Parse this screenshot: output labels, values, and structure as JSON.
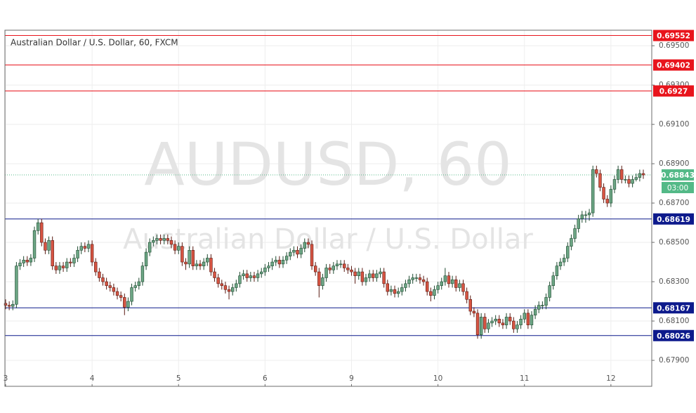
{
  "chart_data": {
    "type": "candlestick",
    "title": "Australian Dollar / U.S. Dollar, 60, FXCM",
    "watermark": "AUDUSD, 60",
    "watermark_subtitle": "Australian Dollar / U.S. Dollar",
    "up_color": "#6ca584",
    "down_color": "#d75442",
    "up_border": "#1e4a30",
    "down_border": "#5a1a12",
    "grid": true,
    "ylim": [
      0.67768,
      0.69579
    ],
    "yticks": [
      {
        "value": 0.679,
        "label": "0.67900"
      },
      {
        "value": 0.681,
        "label": "0.68100"
      },
      {
        "value": 0.683,
        "label": "0.68300"
      },
      {
        "value": 0.685,
        "label": "0.68500"
      },
      {
        "value": 0.687,
        "label": "0.68700"
      },
      {
        "value": 0.689,
        "label": "0.68900"
      },
      {
        "value": 0.691,
        "label": "0.69100"
      },
      {
        "value": 0.693,
        "label": "0.69300"
      },
      {
        "value": 0.695,
        "label": "0.69500"
      }
    ],
    "levels": [
      {
        "value": 0.69552,
        "color": "#e8141c"
      },
      {
        "value": 0.69402,
        "color": "#e8141c"
      },
      {
        "value": 0.6927,
        "color": "#e8141c"
      },
      {
        "value": 0.68619,
        "color": "#0d1a8c"
      },
      {
        "value": 0.68167,
        "color": "#0d1a8c"
      },
      {
        "value": 0.68026,
        "color": "#0d1a8c"
      }
    ],
    "last_price": {
      "value": 0.68843,
      "countdown": "03:00",
      "color": "#53b987"
    },
    "categories": [
      "3",
      null,
      null,
      null,
      null,
      null,
      null,
      null,
      null,
      null,
      null,
      null,
      null,
      null,
      null,
      null,
      null,
      null,
      null,
      null,
      null,
      null,
      null,
      null,
      "4",
      null,
      null,
      null,
      null,
      null,
      null,
      null,
      null,
      null,
      null,
      null,
      null,
      null,
      null,
      null,
      null,
      null,
      null,
      null,
      null,
      null,
      null,
      null,
      "5",
      null,
      null,
      null,
      null,
      null,
      null,
      null,
      null,
      null,
      null,
      null,
      null,
      null,
      null,
      null,
      null,
      null,
      null,
      null,
      null,
      null,
      null,
      null,
      "6",
      null,
      null,
      null,
      null,
      null,
      null,
      null,
      null,
      null,
      null,
      null,
      null,
      null,
      null,
      null,
      null,
      null,
      null,
      null,
      null,
      null,
      null,
      null,
      "9",
      null,
      null,
      null,
      null,
      null,
      null,
      null,
      null,
      null,
      null,
      null,
      null,
      null,
      null,
      null,
      null,
      null,
      null,
      null,
      null,
      null,
      null,
      null,
      "10",
      null,
      null,
      null,
      null,
      null,
      null,
      null,
      null,
      null,
      null,
      null,
      null,
      null,
      null,
      null,
      null,
      null,
      null,
      null,
      null,
      null,
      null,
      null,
      "11",
      null,
      null,
      null,
      null,
      null,
      null,
      null,
      null,
      null,
      null,
      null,
      null,
      null,
      null,
      null,
      null,
      null,
      null,
      null,
      null,
      null,
      null,
      null,
      "12",
      null,
      null,
      null,
      null,
      null,
      null,
      null,
      null,
      null
    ],
    "ohlc": [
      [
        0.6819,
        0.6821,
        0.6816,
        0.6818
      ],
      [
        0.6818,
        0.682,
        0.68155,
        0.68175
      ],
      [
        0.68175,
        0.68205,
        0.68155,
        0.68185
      ],
      [
        0.68185,
        0.684,
        0.68165,
        0.6838
      ],
      [
        0.6838,
        0.68415,
        0.6836,
        0.68395
      ],
      [
        0.68395,
        0.6843,
        0.68375,
        0.6841
      ],
      [
        0.6841,
        0.6843,
        0.6838,
        0.684
      ],
      [
        0.684,
        0.6844,
        0.6838,
        0.6842
      ],
      [
        0.6842,
        0.6858,
        0.684,
        0.6856
      ],
      [
        0.6856,
        0.6862,
        0.6854,
        0.686
      ],
      [
        0.686,
        0.6862,
        0.6848,
        0.685
      ],
      [
        0.685,
        0.6852,
        0.6844,
        0.6846
      ],
      [
        0.6846,
        0.6853,
        0.6844,
        0.6851
      ],
      [
        0.6851,
        0.6853,
        0.6836,
        0.6838
      ],
      [
        0.6838,
        0.684,
        0.6834,
        0.6836
      ],
      [
        0.6836,
        0.684,
        0.6834,
        0.6838
      ],
      [
        0.6838,
        0.684,
        0.6835,
        0.6837
      ],
      [
        0.6837,
        0.6842,
        0.6835,
        0.684
      ],
      [
        0.684,
        0.6842,
        0.68375,
        0.68395
      ],
      [
        0.68395,
        0.6844,
        0.68375,
        0.6842
      ],
      [
        0.6842,
        0.6848,
        0.684,
        0.6846
      ],
      [
        0.6846,
        0.685,
        0.6844,
        0.6848
      ],
      [
        0.6848,
        0.685,
        0.6845,
        0.6847
      ],
      [
        0.6847,
        0.6851,
        0.6845,
        0.6849
      ],
      [
        0.6849,
        0.6851,
        0.6838,
        0.684
      ],
      [
        0.684,
        0.6842,
        0.6833,
        0.6835
      ],
      [
        0.6835,
        0.6837,
        0.683,
        0.6832
      ],
      [
        0.6832,
        0.6834,
        0.6828,
        0.683
      ],
      [
        0.683,
        0.6832,
        0.6826,
        0.6828
      ],
      [
        0.6828,
        0.683,
        0.6825,
        0.6827
      ],
      [
        0.6827,
        0.6829,
        0.6823,
        0.6825
      ],
      [
        0.6825,
        0.6827,
        0.6821,
        0.6823
      ],
      [
        0.6823,
        0.6825,
        0.682,
        0.6822
      ],
      [
        0.6822,
        0.6824,
        0.6813,
        0.6817
      ],
      [
        0.6817,
        0.6822,
        0.6815,
        0.682
      ],
      [
        0.682,
        0.6829,
        0.6818,
        0.6827
      ],
      [
        0.6827,
        0.683,
        0.6825,
        0.6828
      ],
      [
        0.6828,
        0.6832,
        0.6826,
        0.683
      ],
      [
        0.683,
        0.684,
        0.6828,
        0.6838
      ],
      [
        0.6838,
        0.6847,
        0.6836,
        0.6845
      ],
      [
        0.6845,
        0.6852,
        0.6843,
        0.685
      ],
      [
        0.685,
        0.6853,
        0.6848,
        0.6851
      ],
      [
        0.6851,
        0.6854,
        0.6849,
        0.6852
      ],
      [
        0.6852,
        0.6854,
        0.6849,
        0.6851
      ],
      [
        0.6851,
        0.6854,
        0.6849,
        0.6852
      ],
      [
        0.6852,
        0.6854,
        0.6849,
        0.6851
      ],
      [
        0.6851,
        0.6853,
        0.6847,
        0.6849
      ],
      [
        0.6849,
        0.6851,
        0.6844,
        0.6846
      ],
      [
        0.6846,
        0.685,
        0.6844,
        0.6848
      ],
      [
        0.6848,
        0.685,
        0.6838,
        0.684
      ],
      [
        0.684,
        0.6842,
        0.6836,
        0.6839
      ],
      [
        0.6839,
        0.6848,
        0.6837,
        0.6846
      ],
      [
        0.6846,
        0.6848,
        0.6836,
        0.6838
      ],
      [
        0.6838,
        0.6841,
        0.6836,
        0.6839
      ],
      [
        0.6839,
        0.6841,
        0.6836,
        0.6838
      ],
      [
        0.6838,
        0.6842,
        0.6836,
        0.684
      ],
      [
        0.684,
        0.6844,
        0.6838,
        0.6842
      ],
      [
        0.6842,
        0.6844,
        0.6833,
        0.6835
      ],
      [
        0.6835,
        0.6837,
        0.683,
        0.6832
      ],
      [
        0.6832,
        0.6834,
        0.6827,
        0.6829
      ],
      [
        0.6829,
        0.6831,
        0.6826,
        0.6828
      ],
      [
        0.6828,
        0.683,
        0.6824,
        0.6826
      ],
      [
        0.6826,
        0.6828,
        0.6821,
        0.6825
      ],
      [
        0.6825,
        0.6829,
        0.6823,
        0.6827
      ],
      [
        0.6827,
        0.6831,
        0.6825,
        0.6829
      ],
      [
        0.6829,
        0.6835,
        0.6827,
        0.6833
      ],
      [
        0.6833,
        0.6836,
        0.6831,
        0.6834
      ],
      [
        0.6834,
        0.6836,
        0.683,
        0.6832
      ],
      [
        0.6832,
        0.6835,
        0.683,
        0.6833
      ],
      [
        0.6833,
        0.6835,
        0.683,
        0.6832
      ],
      [
        0.6832,
        0.6836,
        0.683,
        0.6834
      ],
      [
        0.6834,
        0.6837,
        0.6832,
        0.6835
      ],
      [
        0.6835,
        0.6839,
        0.6833,
        0.6837
      ],
      [
        0.6837,
        0.684,
        0.6835,
        0.6838
      ],
      [
        0.6838,
        0.6842,
        0.6836,
        0.684
      ],
      [
        0.684,
        0.6843,
        0.6838,
        0.6841
      ],
      [
        0.6841,
        0.6843,
        0.6837,
        0.6839
      ],
      [
        0.6839,
        0.6843,
        0.6837,
        0.6841
      ],
      [
        0.6841,
        0.6845,
        0.6839,
        0.6843
      ],
      [
        0.6843,
        0.6847,
        0.6841,
        0.6845
      ],
      [
        0.6845,
        0.6848,
        0.6843,
        0.6846
      ],
      [
        0.6846,
        0.6848,
        0.6842,
        0.6844
      ],
      [
        0.6844,
        0.6849,
        0.6842,
        0.6847
      ],
      [
        0.6847,
        0.6852,
        0.6845,
        0.685
      ],
      [
        0.685,
        0.6852,
        0.6847,
        0.6849
      ],
      [
        0.6849,
        0.6851,
        0.6836,
        0.6838
      ],
      [
        0.6838,
        0.684,
        0.6833,
        0.6835
      ],
      [
        0.6835,
        0.6837,
        0.6822,
        0.6828
      ],
      [
        0.6828,
        0.6834,
        0.6826,
        0.6832
      ],
      [
        0.6832,
        0.6839,
        0.683,
        0.6837
      ],
      [
        0.6837,
        0.6839,
        0.6834,
        0.6836
      ],
      [
        0.6836,
        0.684,
        0.6834,
        0.6838
      ],
      [
        0.6838,
        0.6841,
        0.6836,
        0.6839
      ],
      [
        0.6839,
        0.6841,
        0.6837,
        0.6839
      ],
      [
        0.6839,
        0.6841,
        0.6835,
        0.6837
      ],
      [
        0.6837,
        0.6839,
        0.6834,
        0.6836
      ],
      [
        0.6836,
        0.6838,
        0.6833,
        0.6835
      ],
      [
        0.6835,
        0.6837,
        0.6829,
        0.6833
      ],
      [
        0.6833,
        0.6837,
        0.6831,
        0.6835
      ],
      [
        0.6835,
        0.6837,
        0.6828,
        0.683
      ],
      [
        0.683,
        0.6834,
        0.6828,
        0.6832
      ],
      [
        0.6832,
        0.6836,
        0.683,
        0.6834
      ],
      [
        0.6834,
        0.6836,
        0.683,
        0.6832
      ],
      [
        0.6832,
        0.6836,
        0.683,
        0.6834
      ],
      [
        0.6834,
        0.6837,
        0.6832,
        0.6835
      ],
      [
        0.6835,
        0.6837,
        0.6827,
        0.6829
      ],
      [
        0.6829,
        0.6831,
        0.6823,
        0.6825
      ],
      [
        0.6825,
        0.6828,
        0.6823,
        0.6826
      ],
      [
        0.6826,
        0.6828,
        0.6822,
        0.6824
      ],
      [
        0.6824,
        0.6827,
        0.6822,
        0.6825
      ],
      [
        0.6825,
        0.6829,
        0.6823,
        0.6827
      ],
      [
        0.6827,
        0.6831,
        0.6825,
        0.6829
      ],
      [
        0.6829,
        0.6833,
        0.6827,
        0.6831
      ],
      [
        0.6831,
        0.6834,
        0.6829,
        0.6832
      ],
      [
        0.6832,
        0.6834,
        0.683,
        0.6832
      ],
      [
        0.6832,
        0.6834,
        0.6829,
        0.6831
      ],
      [
        0.6831,
        0.6833,
        0.6828,
        0.683
      ],
      [
        0.683,
        0.6832,
        0.6823,
        0.6825
      ],
      [
        0.6825,
        0.6827,
        0.682,
        0.6823
      ],
      [
        0.6823,
        0.6828,
        0.6821,
        0.6826
      ],
      [
        0.6826,
        0.683,
        0.6824,
        0.6828
      ],
      [
        0.6828,
        0.6832,
        0.6826,
        0.683
      ],
      [
        0.683,
        0.6837,
        0.6828,
        0.6833
      ],
      [
        0.6833,
        0.6835,
        0.6827,
        0.6829
      ],
      [
        0.6829,
        0.6833,
        0.6827,
        0.6831
      ],
      [
        0.6831,
        0.6833,
        0.6825,
        0.6827
      ],
      [
        0.6827,
        0.6831,
        0.6825,
        0.6829
      ],
      [
        0.6829,
        0.6831,
        0.6823,
        0.6825
      ],
      [
        0.6825,
        0.6827,
        0.6819,
        0.6821
      ],
      [
        0.6821,
        0.6823,
        0.6813,
        0.6815
      ],
      [
        0.6815,
        0.6817,
        0.6812,
        0.6814
      ],
      [
        0.6814,
        0.6816,
        0.6801,
        0.6803
      ],
      [
        0.6803,
        0.6814,
        0.6801,
        0.6812
      ],
      [
        0.6812,
        0.6814,
        0.6804,
        0.6806
      ],
      [
        0.6806,
        0.6811,
        0.6804,
        0.6809
      ],
      [
        0.6809,
        0.6812,
        0.6807,
        0.681
      ],
      [
        0.681,
        0.6813,
        0.6808,
        0.6811
      ],
      [
        0.6811,
        0.6813,
        0.6807,
        0.6809
      ],
      [
        0.6809,
        0.6811,
        0.6806,
        0.6808
      ],
      [
        0.6808,
        0.6814,
        0.6806,
        0.6812
      ],
      [
        0.6812,
        0.6814,
        0.6808,
        0.681
      ],
      [
        0.681,
        0.6812,
        0.6804,
        0.6806
      ],
      [
        0.6806,
        0.681,
        0.6804,
        0.6808
      ],
      [
        0.6808,
        0.6813,
        0.6806,
        0.6811
      ],
      [
        0.6811,
        0.6816,
        0.6809,
        0.6814
      ],
      [
        0.6814,
        0.6816,
        0.6806,
        0.6808
      ],
      [
        0.6808,
        0.6815,
        0.6806,
        0.6813
      ],
      [
        0.6813,
        0.6818,
        0.6811,
        0.6816
      ],
      [
        0.6816,
        0.682,
        0.6814,
        0.6818
      ],
      [
        0.6818,
        0.682,
        0.6816,
        0.6818
      ],
      [
        0.6818,
        0.6824,
        0.6816,
        0.6822
      ],
      [
        0.6822,
        0.683,
        0.682,
        0.6828
      ],
      [
        0.6828,
        0.6835,
        0.6826,
        0.6833
      ],
      [
        0.6833,
        0.684,
        0.6831,
        0.6838
      ],
      [
        0.6838,
        0.6842,
        0.6836,
        0.684
      ],
      [
        0.684,
        0.6844,
        0.6838,
        0.6842
      ],
      [
        0.6842,
        0.685,
        0.684,
        0.6848
      ],
      [
        0.6848,
        0.6854,
        0.6846,
        0.6852
      ],
      [
        0.6852,
        0.6859,
        0.685,
        0.6857
      ],
      [
        0.6857,
        0.6864,
        0.6855,
        0.6862
      ],
      [
        0.6862,
        0.6866,
        0.686,
        0.6864
      ],
      [
        0.6864,
        0.6866,
        0.686,
        0.6864
      ],
      [
        0.6864,
        0.6867,
        0.6861,
        0.6865
      ],
      [
        0.6865,
        0.6889,
        0.6863,
        0.6887
      ],
      [
        0.6887,
        0.6889,
        0.6883,
        0.6885
      ],
      [
        0.6885,
        0.6887,
        0.6876,
        0.6878
      ],
      [
        0.6878,
        0.688,
        0.687,
        0.6872
      ],
      [
        0.6872,
        0.6874,
        0.6868,
        0.687
      ],
      [
        0.687,
        0.6879,
        0.6868,
        0.6877
      ],
      [
        0.6877,
        0.6884,
        0.6875,
        0.6882
      ],
      [
        0.6882,
        0.6889,
        0.688,
        0.6887
      ],
      [
        0.6887,
        0.6889,
        0.688,
        0.6882
      ],
      [
        0.6882,
        0.6884,
        0.688,
        0.6882
      ],
      [
        0.6882,
        0.6884,
        0.6878,
        0.688
      ],
      [
        0.688,
        0.6884,
        0.6878,
        0.6882
      ],
      [
        0.6882,
        0.6885,
        0.6881,
        0.6883
      ],
      [
        0.6883,
        0.6887,
        0.6881,
        0.6885
      ],
      [
        0.6885,
        0.6887,
        0.68823,
        0.68843
      ]
    ]
  }
}
